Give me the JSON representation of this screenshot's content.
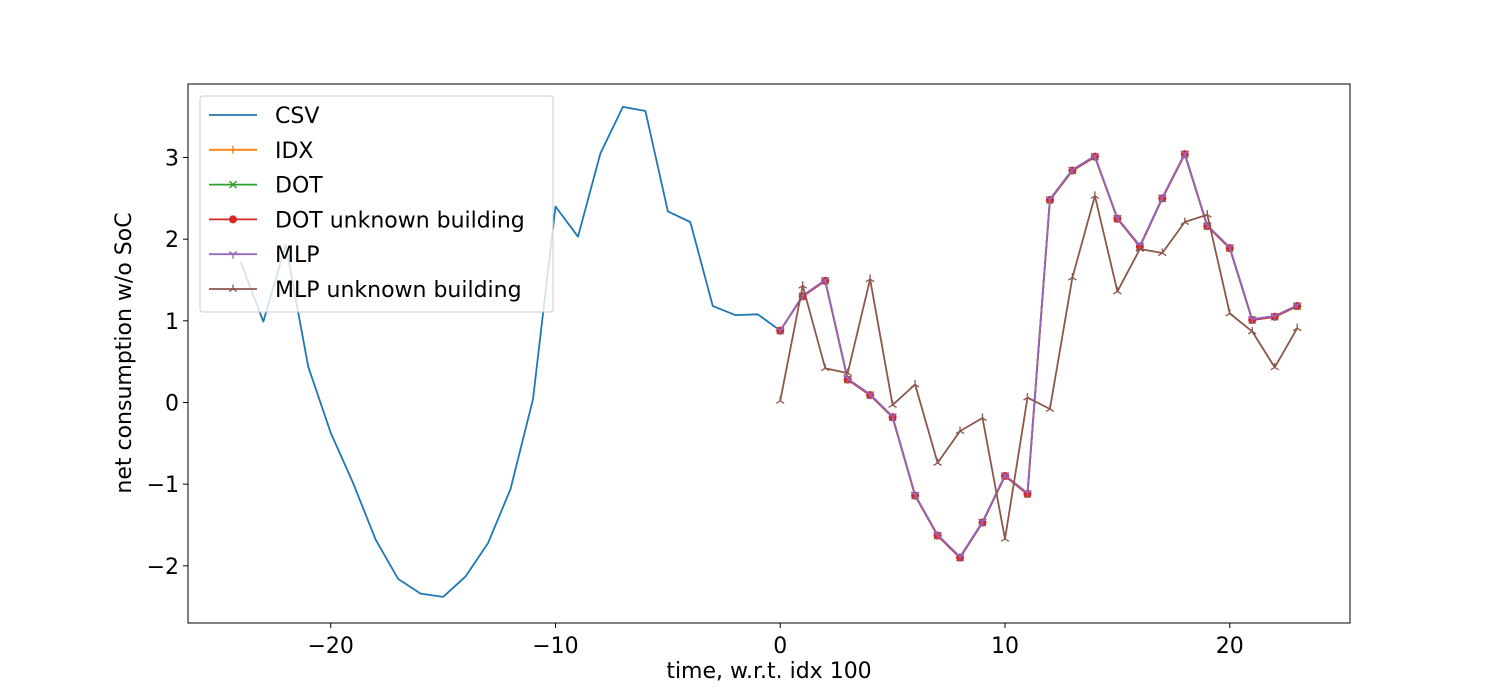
{
  "chart_data": {
    "type": "line",
    "title": "",
    "xlabel": "time, w.r.t. idx 100",
    "ylabel": "net consumption w/o SoC",
    "xlim": [
      -26.35,
      25.35
    ],
    "ylim": [
      -2.7,
      3.9
    ],
    "xticks": [
      -20,
      -10,
      0,
      10,
      20
    ],
    "yticks": [
      -2,
      -1,
      0,
      1,
      2,
      3
    ],
    "grid": false,
    "legend_position": "top-left",
    "series": [
      {
        "name": "CSV",
        "color": "#1f77b4",
        "marker": "none",
        "x": [
          -24,
          -23,
          -22,
          -21,
          -20,
          -19,
          -18,
          -17,
          -16,
          -15,
          -14,
          -13,
          -12,
          -11,
          -10,
          -9,
          -8,
          -7,
          -6,
          -5,
          -4,
          -3,
          -2,
          -1,
          0
        ],
        "y": [
          1.72,
          0.99,
          1.93,
          0.44,
          -0.37,
          -0.99,
          -1.68,
          -2.16,
          -2.34,
          -2.38,
          -2.13,
          -1.72,
          -1.06,
          0.04,
          2.4,
          2.03,
          3.05,
          3.62,
          3.57,
          2.34,
          2.21,
          1.18,
          1.07,
          1.08,
          0.88
        ]
      },
      {
        "name": "IDX",
        "color": "#ff7f0e",
        "marker": "plus",
        "x": [
          0,
          1,
          2,
          3,
          4,
          5,
          6,
          7,
          8,
          9,
          10,
          11,
          12,
          13,
          14,
          15,
          16,
          17,
          18,
          19,
          20,
          21,
          22,
          23
        ],
        "y": [
          0.88,
          1.3,
          1.49,
          0.28,
          0.09,
          -0.18,
          -1.14,
          -1.63,
          -1.9,
          -1.47,
          -0.9,
          -1.12,
          2.48,
          2.84,
          3.01,
          2.25,
          1.91,
          2.5,
          3.04,
          2.16,
          1.89,
          1.01,
          1.05,
          1.18
        ]
      },
      {
        "name": "DOT",
        "color": "#2ca02c",
        "marker": "x",
        "x": [
          0,
          1,
          2,
          3,
          4,
          5,
          6,
          7,
          8,
          9,
          10,
          11,
          12,
          13,
          14,
          15,
          16,
          17,
          18,
          19,
          20,
          21,
          22,
          23
        ],
        "y": [
          0.88,
          1.3,
          1.49,
          0.28,
          0.09,
          -0.18,
          -1.14,
          -1.63,
          -1.9,
          -1.47,
          -0.9,
          -1.12,
          2.48,
          2.84,
          3.01,
          2.25,
          1.91,
          2.5,
          3.04,
          2.16,
          1.89,
          1.01,
          1.05,
          1.18
        ]
      },
      {
        "name": "DOT unknown building",
        "color": "#d62728",
        "marker": "circle",
        "x": [
          0,
          1,
          2,
          3,
          4,
          5,
          6,
          7,
          8,
          9,
          10,
          11,
          12,
          13,
          14,
          15,
          16,
          17,
          18,
          19,
          20,
          21,
          22,
          23
        ],
        "y": [
          0.88,
          1.3,
          1.49,
          0.28,
          0.09,
          -0.18,
          -1.14,
          -1.63,
          -1.9,
          -1.47,
          -0.9,
          -1.12,
          2.48,
          2.84,
          3.01,
          2.25,
          1.91,
          2.5,
          3.04,
          2.16,
          1.89,
          1.01,
          1.05,
          1.18
        ]
      },
      {
        "name": "MLP",
        "color": "#9467bd",
        "marker": "tri_down",
        "x": [
          0,
          1,
          2,
          3,
          4,
          5,
          6,
          7,
          8,
          9,
          10,
          11,
          12,
          13,
          14,
          15,
          16,
          17,
          18,
          19,
          20,
          21,
          22,
          23
        ],
        "y": [
          0.88,
          1.31,
          1.5,
          0.29,
          0.1,
          -0.17,
          -1.13,
          -1.62,
          -1.89,
          -1.46,
          -0.89,
          -1.11,
          2.49,
          2.85,
          3.02,
          2.26,
          1.92,
          2.51,
          3.05,
          2.17,
          1.9,
          1.02,
          1.06,
          1.19
        ]
      },
      {
        "name": "MLP unknown building",
        "color": "#8c564b",
        "marker": "tri_up",
        "x": [
          0,
          1,
          2,
          3,
          4,
          5,
          6,
          7,
          8,
          9,
          10,
          11,
          12,
          13,
          14,
          15,
          16,
          17,
          18,
          19,
          20,
          21,
          22,
          23
        ],
        "y": [
          0.02,
          1.43,
          0.42,
          0.36,
          1.51,
          -0.03,
          0.22,
          -0.74,
          -0.35,
          -0.19,
          -1.67,
          0.06,
          -0.08,
          1.53,
          2.53,
          1.36,
          1.88,
          1.83,
          2.21,
          2.3,
          1.09,
          0.87,
          0.43,
          0.91
        ]
      }
    ]
  }
}
